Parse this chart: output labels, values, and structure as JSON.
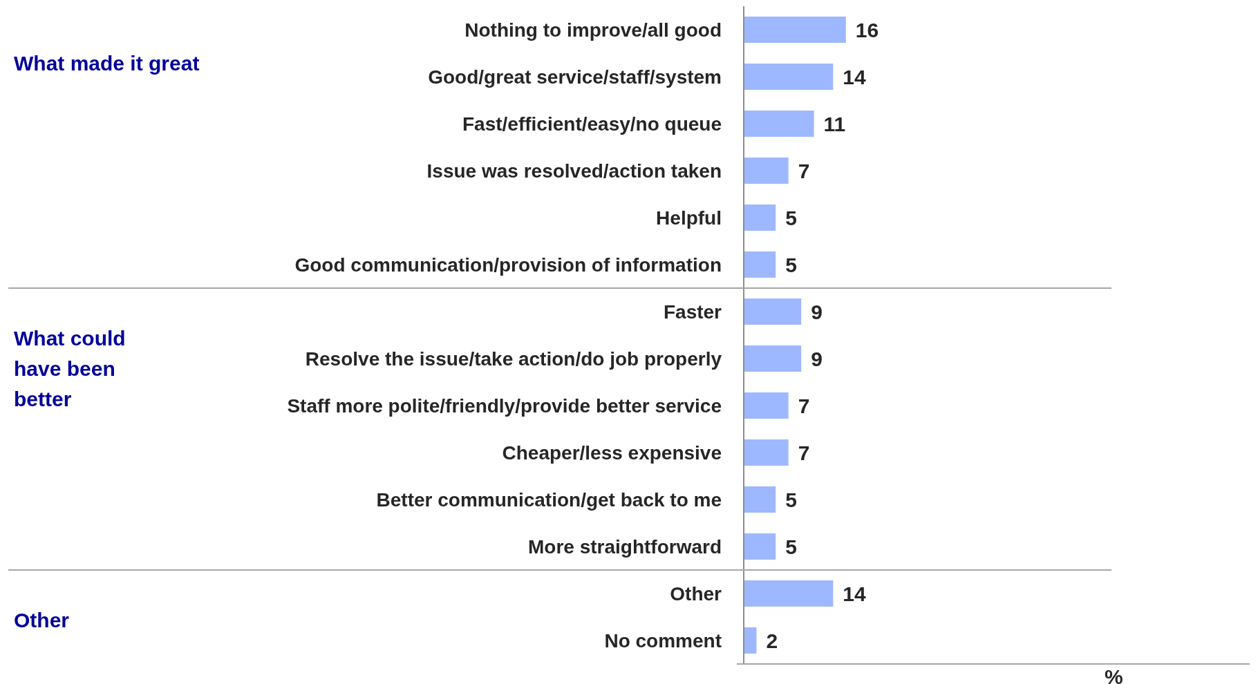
{
  "chart_data": {
    "type": "bar",
    "orientation": "horizontal",
    "data_labels": true,
    "color": "#9db8ff",
    "categories": [
      "Nothing to improve/all good",
      "Good/great service/staff/system",
      "Fast/efficient/easy/no queue",
      "Issue was resolved/action taken",
      "Helpful",
      "Good communication/provision of information",
      "Faster",
      "Resolve the issue/take action/do job properly",
      "Staff more polite/friendly/provide better service",
      "Cheaper/less expensive",
      "Better communication/get back to me",
      "More straightforward",
      "Other",
      "No comment"
    ],
    "values": [
      16,
      14,
      11,
      7,
      5,
      5,
      9,
      9,
      7,
      7,
      5,
      5,
      14,
      2
    ],
    "annotations": [
      "What made it great",
      "What could have been better",
      "Other",
      "%"
    ]
  }
}
